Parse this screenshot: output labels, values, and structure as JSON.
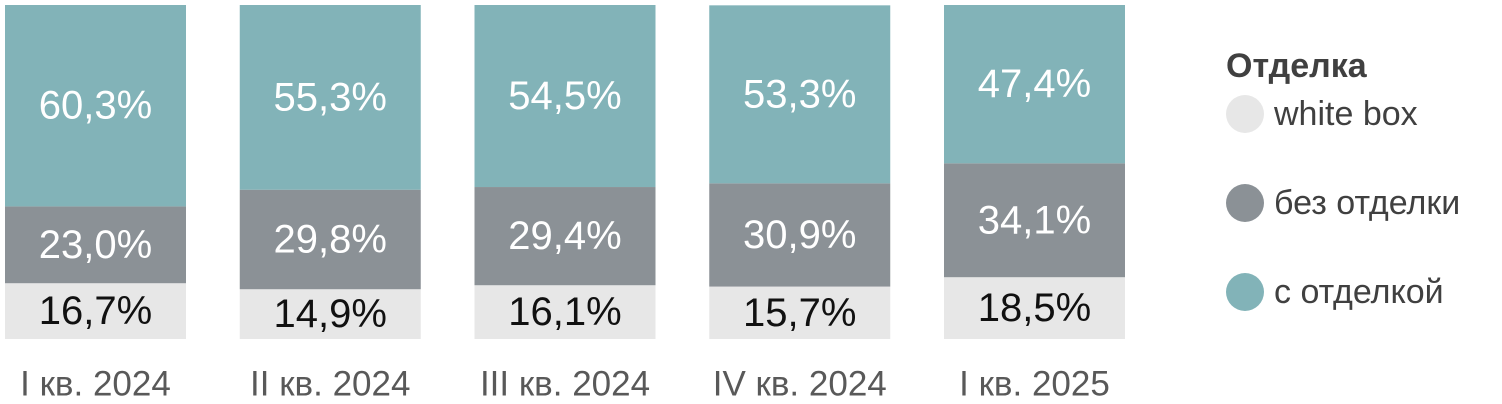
{
  "chart_data": {
    "type": "bar",
    "stacked": true,
    "categories": [
      "I кв. 2024",
      "II кв. 2024",
      "III кв. 2024",
      "IV кв. 2024",
      "I кв. 2025"
    ],
    "series": [
      {
        "name": "white box",
        "color": "#e7e7e7",
        "label_color": "#111111",
        "values": [
          "16,7%",
          "14,9%",
          "16,1%",
          "15,7%",
          "18,5%"
        ],
        "numeric": [
          16.7,
          14.9,
          16.1,
          15.7,
          18.5
        ]
      },
      {
        "name": "без отделки",
        "color": "#8b9196",
        "label_color": "#ffffff",
        "values": [
          "23,0%",
          "29,8%",
          "29,4%",
          "30,9%",
          "34,1%"
        ],
        "numeric": [
          23.0,
          29.8,
          29.4,
          30.9,
          34.1
        ]
      },
      {
        "name": "с отделкой",
        "color": "#82b3b8",
        "label_color": "#ffffff",
        "values": [
          "60,3%",
          "55,3%",
          "54,5%",
          "53,3%",
          "47,4%"
        ],
        "numeric": [
          60.3,
          55.3,
          54.5,
          53.3,
          47.4
        ]
      }
    ],
    "ylim": [
      0,
      100
    ],
    "grid": false,
    "legend_position": "right",
    "legend_title": "Отделка"
  },
  "legend": {
    "title": "Отделка",
    "items": [
      {
        "label": "white box",
        "color": "#e7e7e7"
      },
      {
        "label": "без отделки",
        "color": "#8b9196"
      },
      {
        "label": "с отделкой",
        "color": "#82b3b8"
      }
    ]
  }
}
